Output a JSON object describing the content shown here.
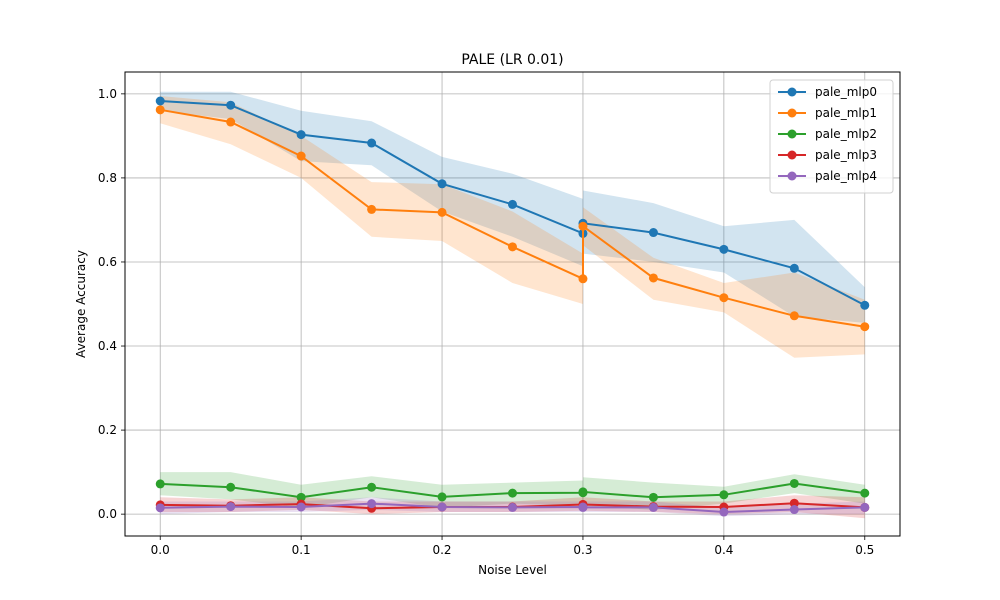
{
  "chart_data": {
    "type": "line",
    "title": "PALE (LR 0.01)",
    "xlabel": "Noise Level",
    "ylabel": "Average Accuracy",
    "xlim": [
      -0.025,
      0.525
    ],
    "ylim": [
      -0.052,
      1.052
    ],
    "xticks": [
      0.0,
      0.1,
      0.2,
      0.3,
      0.4,
      0.5
    ],
    "xtick_labels": [
      "0.0",
      "0.1",
      "0.2",
      "0.3",
      "0.4",
      "0.5"
    ],
    "yticks": [
      0.0,
      0.2,
      0.4,
      0.6,
      0.8,
      1.0
    ],
    "ytick_labels": [
      "0.0",
      "0.2",
      "0.4",
      "0.6",
      "0.8",
      "1.0"
    ],
    "grid": true,
    "legend_position": "top-right",
    "x": [
      0.0,
      0.05,
      0.1,
      0.15,
      0.2,
      0.25,
      0.3,
      0.3,
      0.35,
      0.4,
      0.45,
      0.5
    ],
    "series": [
      {
        "name": "pale_mlp0",
        "color": "#1f77b4",
        "values": [
          0.983,
          0.973,
          0.903,
          0.883,
          0.786,
          0.737,
          0.668,
          0.692,
          0.67,
          0.63,
          0.585,
          0.497
        ],
        "band_low": [
          0.96,
          0.94,
          0.84,
          0.83,
          0.72,
          0.66,
          0.59,
          0.62,
          0.6,
          0.575,
          0.47,
          0.455
        ],
        "band_high": [
          1.005,
          1.005,
          0.96,
          0.935,
          0.85,
          0.81,
          0.75,
          0.77,
          0.74,
          0.685,
          0.7,
          0.54
        ]
      },
      {
        "name": "pale_mlp1",
        "color": "#ff7f0e",
        "values": [
          0.962,
          0.933,
          0.852,
          0.725,
          0.718,
          0.636,
          0.56,
          0.685,
          0.562,
          0.515,
          0.472,
          0.446
        ],
        "band_low": [
          0.93,
          0.88,
          0.8,
          0.66,
          0.65,
          0.55,
          0.5,
          0.64,
          0.51,
          0.48,
          0.372,
          0.38
        ],
        "band_high": [
          0.995,
          0.98,
          0.9,
          0.79,
          0.785,
          0.72,
          0.62,
          0.73,
          0.61,
          0.55,
          0.575,
          0.51
        ]
      },
      {
        "name": "pale_mlp2",
        "color": "#2ca02c",
        "values": [
          0.072,
          0.064,
          0.04,
          0.064,
          0.041,
          0.05,
          0.051,
          0.053,
          0.04,
          0.046,
          0.073,
          0.05
        ],
        "band_low": [
          0.045,
          0.035,
          0.015,
          0.04,
          0.015,
          0.025,
          0.02,
          0.02,
          0.01,
          0.025,
          0.05,
          0.025
        ],
        "band_high": [
          0.1,
          0.1,
          0.07,
          0.09,
          0.07,
          0.075,
          0.08,
          0.088,
          0.075,
          0.065,
          0.095,
          0.07
        ]
      },
      {
        "name": "pale_mlp3",
        "color": "#d62728",
        "values": [
          0.022,
          0.02,
          0.024,
          0.014,
          0.017,
          0.017,
          0.023,
          0.023,
          0.018,
          0.017,
          0.026,
          0.016
        ],
        "band_low": [
          0.005,
          0.005,
          0.01,
          0.0,
          0.005,
          0.005,
          0.008,
          0.008,
          0.005,
          0.0,
          0.005,
          -0.01
        ],
        "band_high": [
          0.04,
          0.035,
          0.04,
          0.03,
          0.03,
          0.03,
          0.04,
          0.04,
          0.03,
          0.03,
          0.045,
          0.04
        ]
      },
      {
        "name": "pale_mlp4",
        "color": "#9467bd",
        "values": [
          0.015,
          0.018,
          0.017,
          0.025,
          0.017,
          0.016,
          0.017,
          0.016,
          0.016,
          0.005,
          0.011,
          0.016
        ],
        "band_low": [
          0.0,
          0.005,
          0.005,
          0.01,
          0.005,
          0.005,
          0.005,
          0.005,
          0.005,
          -0.005,
          0.0,
          0.0
        ],
        "band_high": [
          0.03,
          0.03,
          0.03,
          0.04,
          0.03,
          0.03,
          0.03,
          0.03,
          0.03,
          0.015,
          0.025,
          0.03
        ]
      }
    ]
  }
}
